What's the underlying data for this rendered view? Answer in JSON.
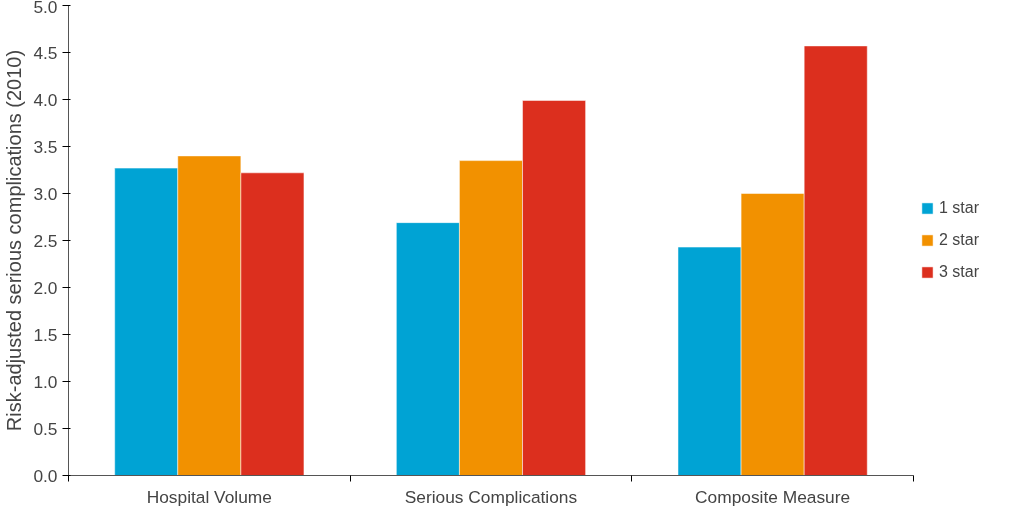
{
  "chart_data": {
    "type": "bar",
    "ylabel": "Risk-adjusted serious complications (2010)",
    "categories": [
      "Hospital Volume",
      "Serious Complications",
      "Composite Measure"
    ],
    "series": [
      {
        "name": "1 star",
        "color": "#00a3d4",
        "values": [
          3.27,
          2.69,
          2.43
        ]
      },
      {
        "name": "2 star",
        "color": "#f29100",
        "values": [
          3.4,
          3.35,
          3.0
        ]
      },
      {
        "name": "3 star",
        "color": "#dc2f1e",
        "values": [
          3.22,
          3.99,
          4.57
        ]
      }
    ],
    "ylim": [
      0,
      5
    ],
    "yticks": [
      {
        "value": 0,
        "label": "0.0"
      },
      0.5,
      {
        "value": 1,
        "label": "1.0"
      },
      1.5,
      {
        "value": 2,
        "label": "2.0"
      },
      2.5,
      {
        "value": 3,
        "label": "3.0"
      },
      3.5,
      {
        "value": 4,
        "label": "4.0"
      },
      4.5,
      {
        "value": 5,
        "label": "5.0"
      }
    ],
    "grid": false,
    "legend": "right"
  }
}
